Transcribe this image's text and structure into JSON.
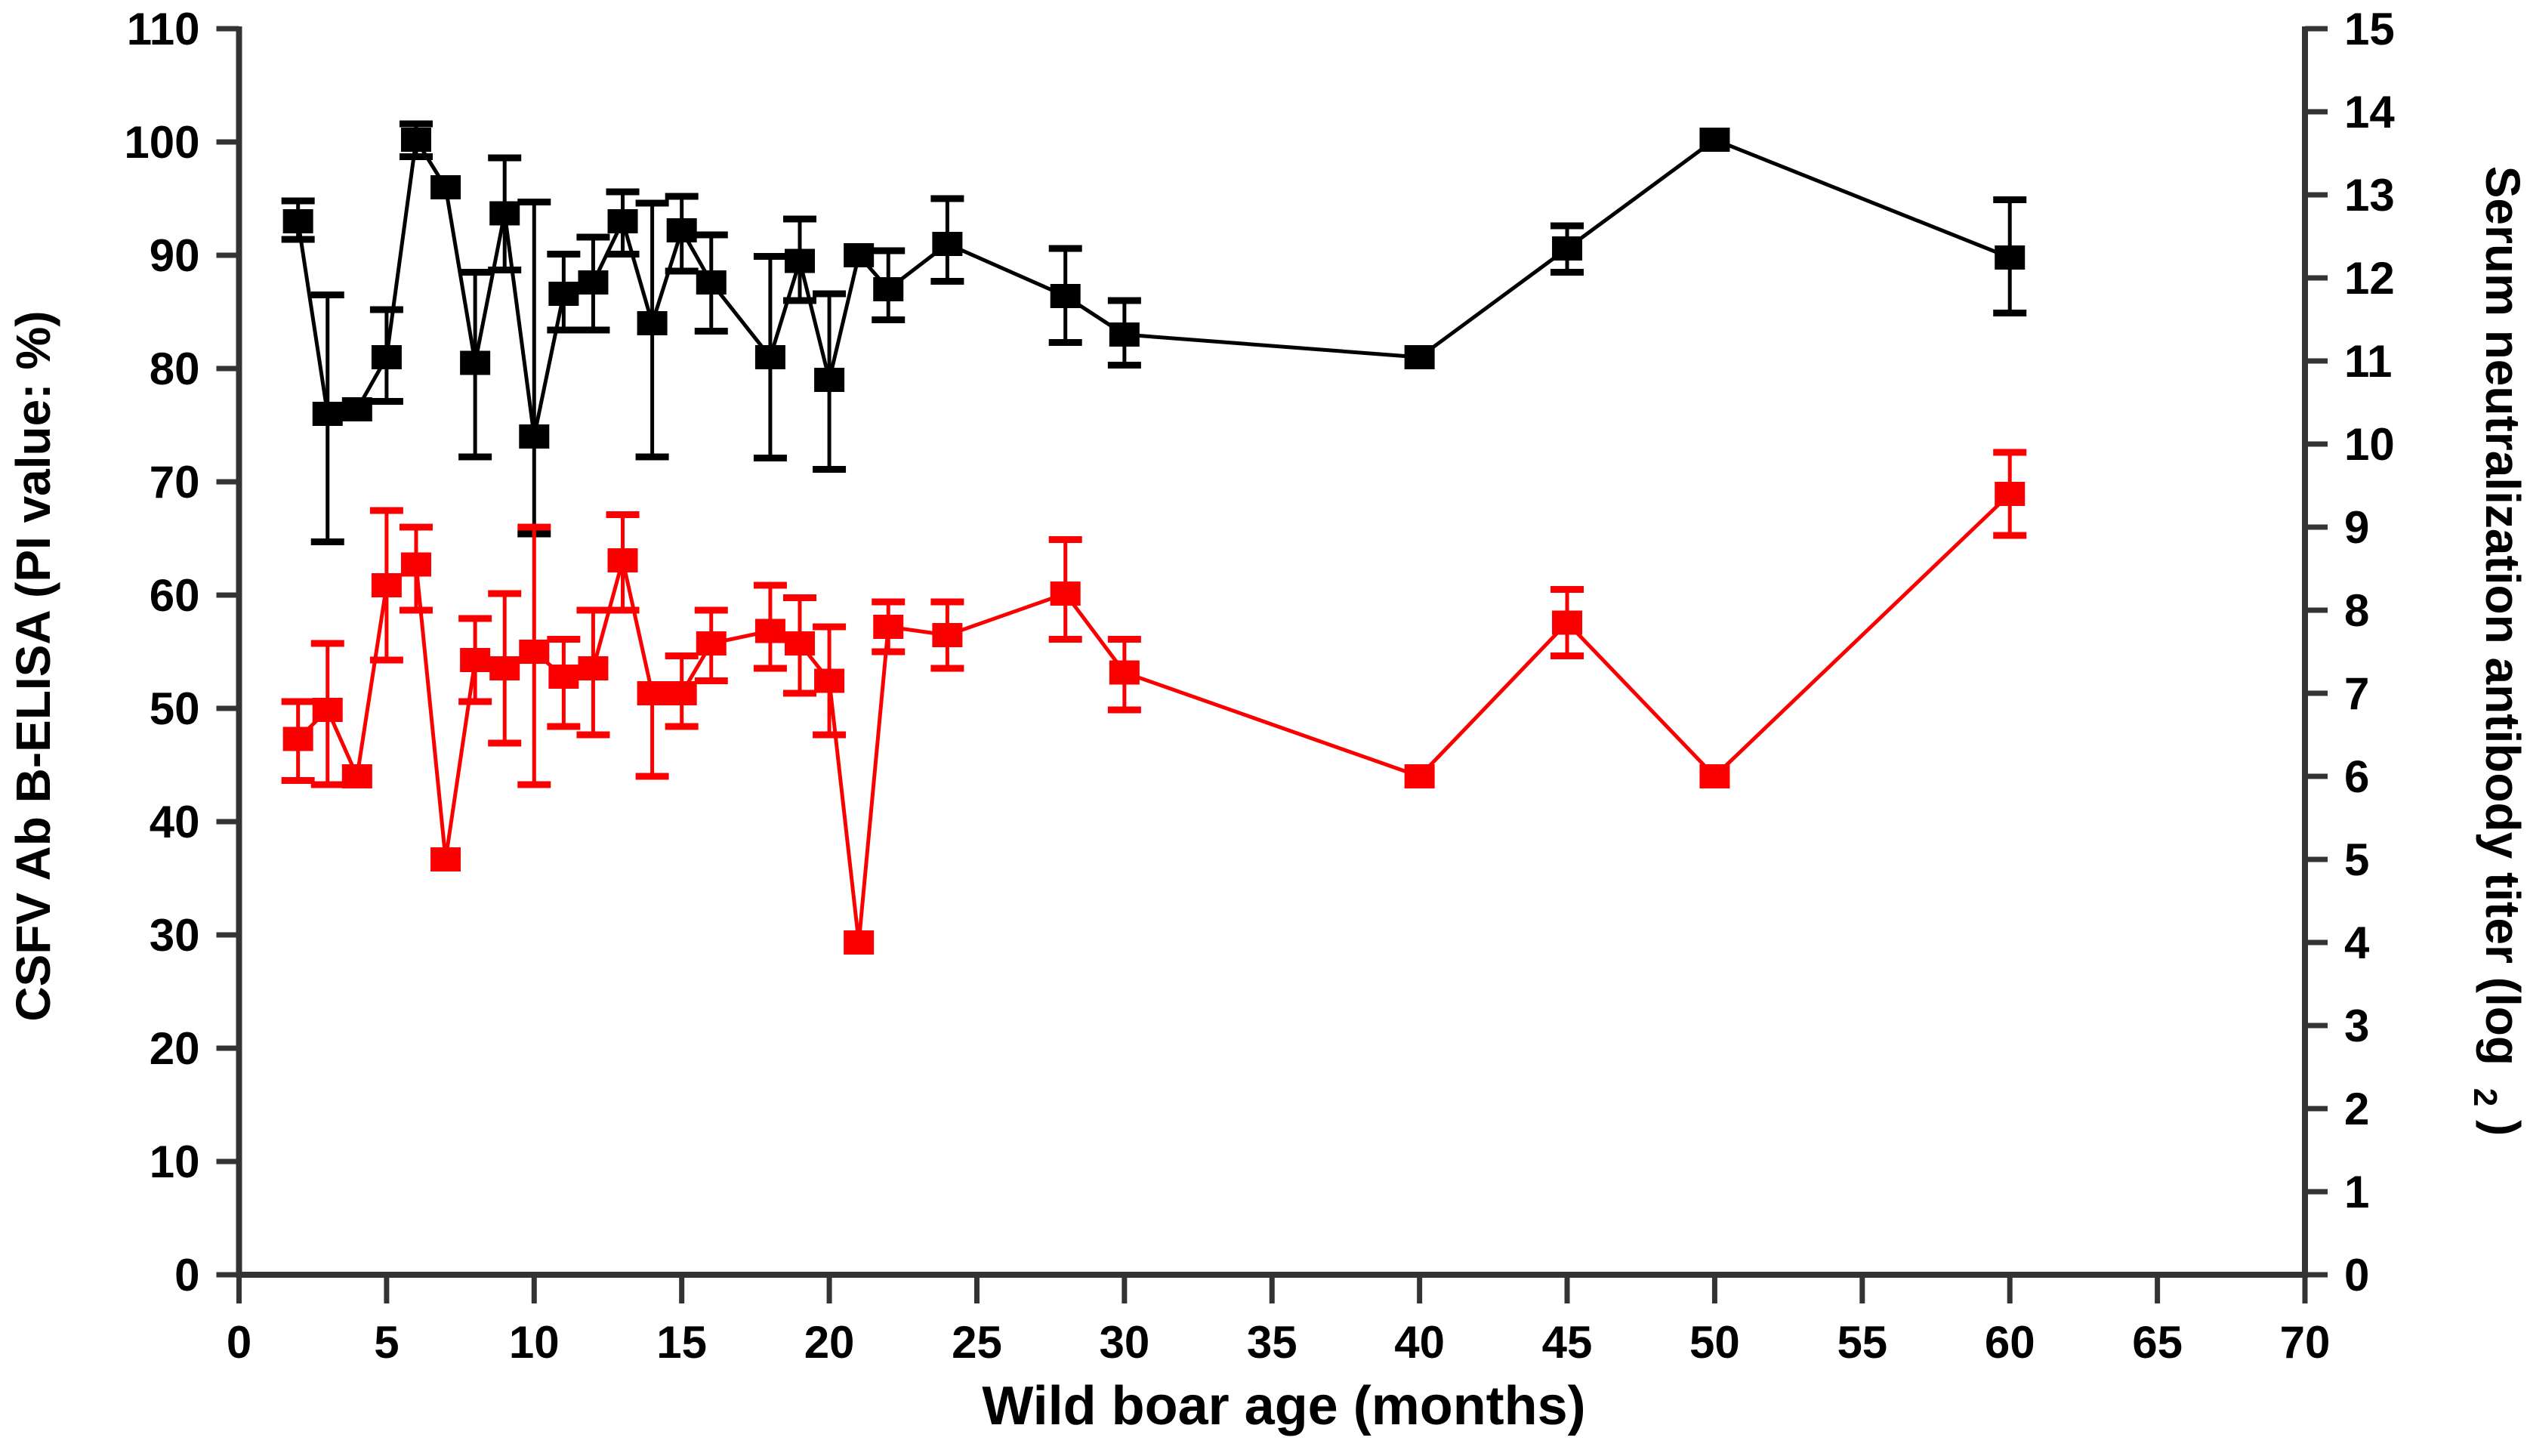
{
  "figure": {
    "background": "#ffffff",
    "x_axis": {
      "label": "Wild boar age (months)",
      "min": 0,
      "max": 70,
      "tick_step": 5,
      "tick_labels": [
        "0",
        "5",
        "10",
        "15",
        "20",
        "25",
        "30",
        "35",
        "40",
        "45",
        "50",
        "55",
        "60",
        "65",
        "70"
      ]
    },
    "y_axis_left": {
      "label": "CSFV Ab B-ELISA (PI value: %)",
      "min": 0,
      "max": 110,
      "tick_step": 10,
      "tick_labels": [
        "0",
        "10",
        "20",
        "30",
        "40",
        "50",
        "60",
        "70",
        "80",
        "90",
        "100",
        "110"
      ]
    },
    "y_axis_right": {
      "label_text": "Serum neutralization antibody titer (log",
      "label_subscript": "2",
      "label_close": ")",
      "min": 0,
      "max": 15,
      "tick_step": 1,
      "tick_labels": [
        "0",
        "1",
        "2",
        "3",
        "4",
        "5",
        "6",
        "7",
        "8",
        "9",
        "10",
        "11",
        "12",
        "13",
        "14",
        "15"
      ]
    },
    "axis_color": "#333333",
    "label_color": "#000000"
  },
  "chart_data": {
    "type": "line",
    "title": "",
    "grid": false,
    "legend_position": "none",
    "xlabel": "Wild boar age (months)",
    "ylabel_left": "CSFV Ab B-ELISA (PI value: %)",
    "ylabel_right": "Serum neutralization antibody titer (log2)",
    "x_range": [
      0,
      70
    ],
    "y_left_range": [
      0,
      110
    ],
    "y_right_range": [
      0,
      15
    ],
    "x": [
      2,
      3,
      4,
      5,
      6,
      7,
      8,
      9,
      10,
      11,
      12,
      13,
      14,
      15,
      16,
      18,
      19,
      20,
      21,
      22,
      24,
      28,
      30,
      40,
      45,
      50,
      60
    ],
    "series": [
      {
        "name": "CSFV Ab B-ELISA PI value (%)",
        "axis": "left",
        "color": "#000000",
        "marker": "square",
        "values": [
          93,
          76,
          76.4,
          81,
          100.2,
          96,
          80.5,
          93.7,
          74,
          86.6,
          87.6,
          93,
          84,
          92.2,
          87.6,
          81,
          89.5,
          79,
          90,
          87,
          91,
          86.4,
          83,
          81,
          90.6,
          100.2,
          89.8
        ],
        "err_up": [
          1.8,
          10.5,
          0,
          4.2,
          1.4,
          0,
          8,
          4.9,
          20.7,
          3.5,
          4,
          2.6,
          10.6,
          3,
          4.2,
          8.9,
          3.7,
          7.6,
          0,
          3.4,
          4,
          4.2,
          3,
          0,
          2,
          0,
          5.1
        ],
        "err_down": [
          1.6,
          11.3,
          0,
          3.9,
          1.5,
          0,
          8.3,
          5,
          8.6,
          3.2,
          4.2,
          2.9,
          11.8,
          3.6,
          4.3,
          8.9,
          3.5,
          7.9,
          0,
          2.7,
          3.3,
          4.1,
          2.7,
          0,
          2.1,
          0,
          4.9
        ]
      },
      {
        "name": "Serum neutralization antibody titer (log2)",
        "axis": "right",
        "color": "#fb0000",
        "marker": "square",
        "values": [
          6.45,
          6.8,
          6.0,
          8.3,
          8.55,
          5.0,
          7.4,
          7.3,
          7.5,
          7.2,
          7.3,
          8.6,
          7.0,
          7.0,
          7.6,
          7.75,
          7.6,
          7.15,
          4.0,
          7.8,
          7.7,
          8.2,
          7.25,
          6.0,
          7.85,
          6.0,
          9.4
        ],
        "err_up": [
          0.45,
          0.8,
          0,
          0.9,
          0.45,
          0,
          0.5,
          0.9,
          1.5,
          0.45,
          0.7,
          0.55,
          0,
          0.45,
          0.4,
          0.55,
          0.55,
          0.65,
          0,
          0.3,
          0.4,
          0.65,
          0.4,
          0,
          0.4,
          0,
          0.5
        ],
        "err_down": [
          0.5,
          0.9,
          0,
          0.9,
          0.55,
          0,
          0.5,
          0.9,
          1.6,
          0.6,
          0.8,
          0.6,
          1.0,
          0.4,
          0.45,
          0.45,
          0.6,
          0.65,
          0,
          0.3,
          0.4,
          0.55,
          0.45,
          0,
          0.4,
          0,
          0.5
        ]
      }
    ]
  }
}
